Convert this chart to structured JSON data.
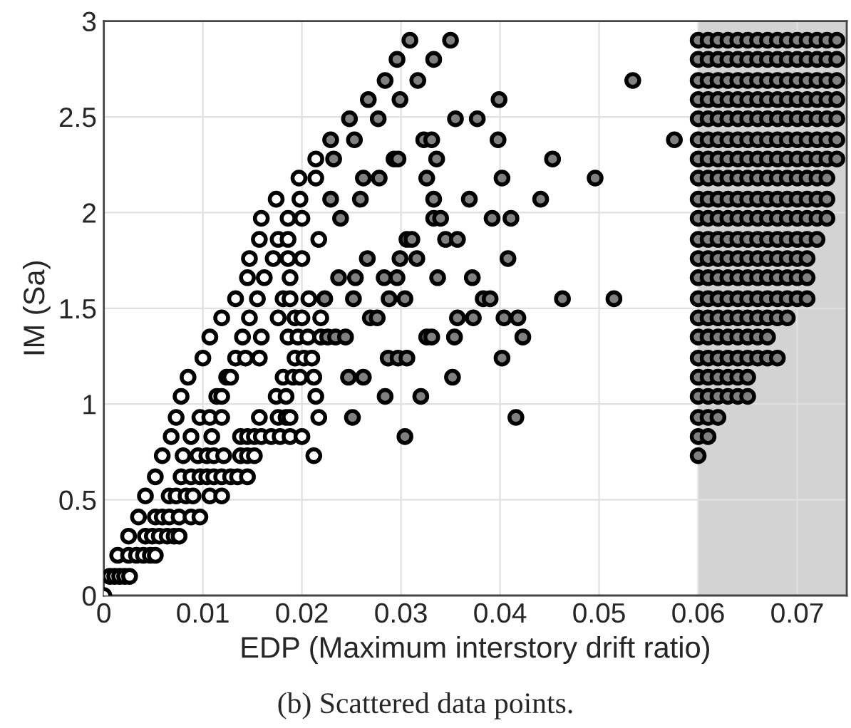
{
  "chart_data": {
    "type": "scatter",
    "xlabel": "EDP (Maximum interstory drift ratio)",
    "ylabel": "IM (Sa)",
    "annotations": [
      "(b) Scattered data points."
    ],
    "xlim": [
      0,
      0.075
    ],
    "ylim": [
      0,
      3
    ],
    "xticks": [
      0,
      0.01,
      0.02,
      0.03,
      0.04,
      0.05,
      0.06,
      0.07
    ],
    "yticks": [
      0,
      0.5,
      1,
      1.5,
      2,
      2.5,
      3
    ],
    "grid": true,
    "marker": "circle",
    "bands": [
      {
        "axis": "x",
        "from": 0.06,
        "to": 0.075,
        "color": "#d3d3d3"
      }
    ],
    "series": [
      {
        "color": "#ffffff",
        "x": [
          0,
          0.0006,
          0.0011,
          0.0016,
          0.0021,
          0.0026,
          0.0014,
          0.0025,
          0.0033,
          0.004,
          0.0047,
          0.0052,
          0.0025,
          0.0042,
          0.0049,
          0.0056,
          0.0064,
          0.0071,
          0.0076,
          0.0035,
          0.0052,
          0.0059,
          0.0066,
          0.0076,
          0.0088,
          0.0097,
          0.0042,
          0.0066,
          0.0073,
          0.0083,
          0.009,
          0.0107,
          0.0119,
          0.0052,
          0.0078,
          0.0088,
          0.0097,
          0.0104,
          0.0111,
          0.0119,
          0.0128,
          0.0135,
          0.0145,
          0.0059,
          0.008,
          0.0095,
          0.0104,
          0.0111,
          0.0121,
          0.0138,
          0.0145,
          0.0152,
          0.0212,
          0.0068,
          0.0088,
          0.0109,
          0.0138,
          0.0145,
          0.0152,
          0.0159,
          0.0169,
          0.0178,
          0.0188,
          0.02,
          0.0073,
          0.0097,
          0.0107,
          0.0119,
          0.0157,
          0.0176,
          0.0184,
          0.0188,
          0.0217,
          0.0078,
          0.0114,
          0.0119,
          0.0174,
          0.0184,
          0.0214,
          0.0085,
          0.0124,
          0.0128,
          0.0181,
          0.0191,
          0.0198,
          0.0212,
          0.01,
          0.0133,
          0.0143,
          0.0157,
          0.0193,
          0.0202,
          0.021,
          0.0107,
          0.014,
          0.0159,
          0.0186,
          0.0196,
          0.0206,
          0.0219,
          0.0119,
          0.0147,
          0.0176,
          0.0193,
          0.02,
          0.0219,
          0.0133,
          0.0155,
          0.0181,
          0.0188,
          0.0207,
          0.0145,
          0.0162,
          0.0188,
          0.0147,
          0.0171,
          0.0186,
          0.02,
          0.0157,
          0.0176,
          0.0186,
          0.0217,
          0.0159,
          0.0186,
          0.02,
          0.0174,
          0.0198,
          0.0197,
          0.0214,
          0.0214
        ],
        "values": [
          0,
          0.1,
          0.1,
          0.1,
          0.1,
          0.1,
          0.21,
          0.21,
          0.21,
          0.21,
          0.21,
          0.21,
          0.31,
          0.31,
          0.31,
          0.31,
          0.31,
          0.31,
          0.31,
          0.41,
          0.41,
          0.41,
          0.41,
          0.41,
          0.41,
          0.41,
          0.52,
          0.52,
          0.52,
          0.52,
          0.52,
          0.52,
          0.52,
          0.62,
          0.62,
          0.62,
          0.62,
          0.62,
          0.62,
          0.62,
          0.62,
          0.62,
          0.62,
          0.73,
          0.73,
          0.73,
          0.73,
          0.73,
          0.73,
          0.73,
          0.73,
          0.73,
          0.73,
          0.83,
          0.83,
          0.83,
          0.83,
          0.83,
          0.83,
          0.83,
          0.83,
          0.83,
          0.83,
          0.83,
          0.93,
          0.93,
          0.93,
          0.93,
          0.93,
          0.93,
          0.93,
          0.93,
          0.93,
          1.04,
          1.04,
          1.04,
          1.04,
          1.04,
          1.04,
          1.14,
          1.14,
          1.14,
          1.14,
          1.14,
          1.14,
          1.14,
          1.24,
          1.24,
          1.24,
          1.24,
          1.24,
          1.24,
          1.24,
          1.35,
          1.35,
          1.35,
          1.35,
          1.35,
          1.35,
          1.35,
          1.45,
          1.45,
          1.45,
          1.45,
          1.45,
          1.45,
          1.55,
          1.55,
          1.55,
          1.55,
          1.55,
          1.66,
          1.66,
          1.66,
          1.76,
          1.76,
          1.76,
          1.76,
          1.86,
          1.86,
          1.86,
          1.86,
          1.97,
          1.97,
          1.97,
          2.07,
          2.07,
          2.18,
          2.18,
          2.28
        ]
      },
      {
        "color": "#808080",
        "x": [
          0.0309,
          0.035,
          0.0296,
          0.0333,
          0.0284,
          0.0317,
          0.0534,
          0.0267,
          0.0299,
          0.0399,
          0.0248,
          0.0277,
          0.0355,
          0.0377,
          0.0229,
          0.0253,
          0.0323,
          0.0331,
          0.0398,
          0.0576,
          0.0232,
          0.0293,
          0.0297,
          0.0336,
          0.0453,
          0.0262,
          0.0278,
          0.0326,
          0.0402,
          0.0496,
          0.0229,
          0.0259,
          0.0333,
          0.0369,
          0.0441,
          0.0239,
          0.0333,
          0.034,
          0.0392,
          0.0411,
          0.0306,
          0.0311,
          0.0345,
          0.0357,
          0.0266,
          0.0299,
          0.0316,
          0.0408,
          0.0237,
          0.0254,
          0.0283,
          0.0296,
          0.0337,
          0.0372,
          0.0223,
          0.0252,
          0.0288,
          0.0304,
          0.0383,
          0.039,
          0.0463,
          0.0515,
          0.0269,
          0.0276,
          0.0357,
          0.0373,
          0.0404,
          0.0418,
          0.0226,
          0.0234,
          0.0244,
          0.0326,
          0.0331,
          0.0354,
          0.0423,
          0.0287,
          0.0297,
          0.0306,
          0.0402,
          0.0247,
          0.0262,
          0.0352,
          0.0284,
          0.032,
          0.0251,
          0.0416,
          0.0304
        ],
        "values": [
          2.9,
          2.9,
          2.8,
          2.8,
          2.69,
          2.69,
          2.69,
          2.59,
          2.59,
          2.59,
          2.49,
          2.49,
          2.49,
          2.49,
          2.38,
          2.38,
          2.38,
          2.38,
          2.38,
          2.38,
          2.28,
          2.28,
          2.28,
          2.28,
          2.28,
          2.18,
          2.18,
          2.18,
          2.18,
          2.18,
          2.07,
          2.07,
          2.07,
          2.07,
          2.07,
          1.97,
          1.97,
          1.97,
          1.97,
          1.97,
          1.86,
          1.86,
          1.86,
          1.86,
          1.76,
          1.76,
          1.76,
          1.76,
          1.66,
          1.66,
          1.66,
          1.66,
          1.66,
          1.66,
          1.55,
          1.55,
          1.55,
          1.55,
          1.55,
          1.55,
          1.55,
          1.55,
          1.45,
          1.45,
          1.45,
          1.45,
          1.45,
          1.45,
          1.35,
          1.35,
          1.35,
          1.35,
          1.35,
          1.35,
          1.35,
          1.24,
          1.24,
          1.24,
          1.24,
          1.14,
          1.14,
          1.14,
          1.04,
          1.04,
          0.93,
          0.93,
          0.83
        ]
      },
      {
        "color": "#808080",
        "x": [
          0.06,
          0.061,
          0.062,
          0.063,
          0.064,
          0.065,
          0.066,
          0.067,
          0.068,
          0.069,
          0.07,
          0.071,
          0.072,
          0.073,
          0.074,
          0.06,
          0.061,
          0.062,
          0.063,
          0.064,
          0.065,
          0.066,
          0.067,
          0.068,
          0.069,
          0.07,
          0.071,
          0.072,
          0.073,
          0.074,
          0.06,
          0.061,
          0.062,
          0.063,
          0.064,
          0.065,
          0.066,
          0.067,
          0.068,
          0.069,
          0.07,
          0.071,
          0.072,
          0.073,
          0.074,
          0.06,
          0.061,
          0.062,
          0.063,
          0.064,
          0.065,
          0.066,
          0.067,
          0.068,
          0.069,
          0.07,
          0.071,
          0.072,
          0.073,
          0.074,
          0.06,
          0.061,
          0.062,
          0.063,
          0.064,
          0.065,
          0.066,
          0.067,
          0.068,
          0.069,
          0.07,
          0.071,
          0.072,
          0.073,
          0.074,
          0.06,
          0.061,
          0.062,
          0.063,
          0.064,
          0.065,
          0.066,
          0.067,
          0.068,
          0.069,
          0.07,
          0.071,
          0.072,
          0.073,
          0.074,
          0.06,
          0.061,
          0.062,
          0.063,
          0.064,
          0.065,
          0.066,
          0.067,
          0.068,
          0.069,
          0.07,
          0.071,
          0.072,
          0.073,
          0.074,
          0.06,
          0.061,
          0.062,
          0.063,
          0.064,
          0.065,
          0.066,
          0.067,
          0.068,
          0.069,
          0.07,
          0.071,
          0.072,
          0.073,
          0.06,
          0.061,
          0.062,
          0.063,
          0.064,
          0.065,
          0.066,
          0.067,
          0.068,
          0.069,
          0.07,
          0.071,
          0.072,
          0.073,
          0.06,
          0.061,
          0.062,
          0.063,
          0.064,
          0.065,
          0.066,
          0.067,
          0.068,
          0.069,
          0.07,
          0.071,
          0.072,
          0.073,
          0.06,
          0.061,
          0.062,
          0.063,
          0.064,
          0.065,
          0.066,
          0.067,
          0.068,
          0.069,
          0.07,
          0.071,
          0.072,
          0.06,
          0.061,
          0.062,
          0.063,
          0.064,
          0.065,
          0.066,
          0.067,
          0.068,
          0.069,
          0.07,
          0.071,
          0.06,
          0.061,
          0.062,
          0.063,
          0.064,
          0.065,
          0.066,
          0.067,
          0.068,
          0.069,
          0.07,
          0.071,
          0.06,
          0.061,
          0.062,
          0.063,
          0.064,
          0.065,
          0.066,
          0.067,
          0.068,
          0.069,
          0.07,
          0.071,
          0.06,
          0.061,
          0.062,
          0.063,
          0.064,
          0.065,
          0.066,
          0.067,
          0.068,
          0.069,
          0.06,
          0.061,
          0.062,
          0.063,
          0.064,
          0.065,
          0.066,
          0.067,
          0.06,
          0.061,
          0.062,
          0.063,
          0.064,
          0.065,
          0.066,
          0.067,
          0.068,
          0.06,
          0.061,
          0.062,
          0.063,
          0.064,
          0.065,
          0.06,
          0.061,
          0.062,
          0.063,
          0.064,
          0.065,
          0.06,
          0.061,
          0.062,
          0.06,
          0.061,
          0.06
        ],
        "values": [
          2.9,
          2.9,
          2.9,
          2.9,
          2.9,
          2.9,
          2.9,
          2.9,
          2.9,
          2.9,
          2.9,
          2.9,
          2.9,
          2.9,
          2.9,
          2.8,
          2.8,
          2.8,
          2.8,
          2.8,
          2.8,
          2.8,
          2.8,
          2.8,
          2.8,
          2.8,
          2.8,
          2.8,
          2.8,
          2.8,
          2.69,
          2.69,
          2.69,
          2.69,
          2.69,
          2.69,
          2.69,
          2.69,
          2.69,
          2.69,
          2.69,
          2.69,
          2.69,
          2.69,
          2.69,
          2.59,
          2.59,
          2.59,
          2.59,
          2.59,
          2.59,
          2.59,
          2.59,
          2.59,
          2.59,
          2.59,
          2.59,
          2.59,
          2.59,
          2.59,
          2.49,
          2.49,
          2.49,
          2.49,
          2.49,
          2.49,
          2.49,
          2.49,
          2.49,
          2.49,
          2.49,
          2.49,
          2.49,
          2.49,
          2.49,
          2.38,
          2.38,
          2.38,
          2.38,
          2.38,
          2.38,
          2.38,
          2.38,
          2.38,
          2.38,
          2.38,
          2.38,
          2.38,
          2.38,
          2.38,
          2.28,
          2.28,
          2.28,
          2.28,
          2.28,
          2.28,
          2.28,
          2.28,
          2.28,
          2.28,
          2.28,
          2.28,
          2.28,
          2.28,
          2.28,
          2.18,
          2.18,
          2.18,
          2.18,
          2.18,
          2.18,
          2.18,
          2.18,
          2.18,
          2.18,
          2.18,
          2.18,
          2.18,
          2.18,
          2.07,
          2.07,
          2.07,
          2.07,
          2.07,
          2.07,
          2.07,
          2.07,
          2.07,
          2.07,
          2.07,
          2.07,
          2.07,
          2.07,
          1.97,
          1.97,
          1.97,
          1.97,
          1.97,
          1.97,
          1.97,
          1.97,
          1.97,
          1.97,
          1.97,
          1.97,
          1.97,
          1.97,
          1.86,
          1.86,
          1.86,
          1.86,
          1.86,
          1.86,
          1.86,
          1.86,
          1.86,
          1.86,
          1.86,
          1.86,
          1.86,
          1.76,
          1.76,
          1.76,
          1.76,
          1.76,
          1.76,
          1.76,
          1.76,
          1.76,
          1.76,
          1.76,
          1.76,
          1.66,
          1.66,
          1.66,
          1.66,
          1.66,
          1.66,
          1.66,
          1.66,
          1.66,
          1.66,
          1.66,
          1.66,
          1.55,
          1.55,
          1.55,
          1.55,
          1.55,
          1.55,
          1.55,
          1.55,
          1.55,
          1.55,
          1.55,
          1.55,
          1.45,
          1.45,
          1.45,
          1.45,
          1.45,
          1.45,
          1.45,
          1.45,
          1.45,
          1.45,
          1.35,
          1.35,
          1.35,
          1.35,
          1.35,
          1.35,
          1.35,
          1.35,
          1.24,
          1.24,
          1.24,
          1.24,
          1.24,
          1.24,
          1.24,
          1.24,
          1.24,
          1.14,
          1.14,
          1.14,
          1.14,
          1.14,
          1.14,
          1.04,
          1.04,
          1.04,
          1.04,
          1.04,
          1.04,
          0.93,
          0.93,
          0.93,
          0.83,
          0.83,
          0.73
        ]
      }
    ]
  }
}
